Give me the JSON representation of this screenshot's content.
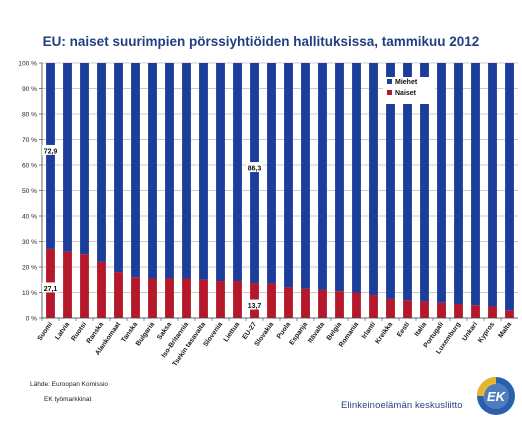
{
  "chart_data": {
    "type": "bar",
    "stacked": true,
    "title": "EU: naiset suurimpien pörssiyhtiöiden hallituksissa, tammikuu 2012",
    "categories": [
      "Suomi",
      "Latvia",
      "Ruotsi",
      "Ranska",
      "Alankomaat",
      "Tanska",
      "Bulgaria",
      "Saksa",
      "Iso-Britannia",
      "Tsekin tasavalta",
      "Slovenia",
      "Liettua",
      "EU-27",
      "Slovakia",
      "Puola",
      "Espanja",
      "Itävalta",
      "Belgia",
      "Romania",
      "Irlanti",
      "Kreikka",
      "Eesti",
      "Italia",
      "Portugali",
      "Luxemburg",
      "Unkari",
      "Kypros",
      "Malta"
    ],
    "series": [
      {
        "name": "Naiset",
        "color": "#b5172b",
        "values": [
          27.1,
          26,
          25,
          22,
          18,
          16,
          15.5,
          15.5,
          15.5,
          15,
          14.5,
          14.5,
          13.7,
          13.5,
          12,
          11.5,
          11,
          10.5,
          10,
          9,
          7.5,
          7,
          6.5,
          6,
          5.5,
          5,
          4.5,
          3
        ]
      },
      {
        "name": "Miehet",
        "color": "#1c3d99",
        "values": [
          72.9,
          74,
          75,
          78,
          82,
          84,
          84.5,
          84.5,
          84.5,
          85,
          85.5,
          85.5,
          86.3,
          86.5,
          88,
          88.5,
          89,
          89.5,
          90,
          91,
          92.5,
          93,
          93.5,
          94,
          94.5,
          95,
          95.5,
          97
        ]
      }
    ],
    "ylim": [
      0,
      100
    ],
    "yticks": [
      "0 %",
      "10 %",
      "20 %",
      "30 %",
      "40 %",
      "50 %",
      "60 %",
      "70 %",
      "80 %",
      "90 %",
      "100 %"
    ],
    "legend": {
      "position": "top-right",
      "entries": [
        "Miehet",
        "Naiset"
      ]
    },
    "annotations": [
      {
        "category": "Suomi",
        "series": "Miehet",
        "text": "72,9"
      },
      {
        "category": "Suomi",
        "series": "Naiset",
        "text": "27,1"
      },
      {
        "category": "EU-27",
        "series": "Miehet",
        "text": "86,3"
      },
      {
        "category": "EU-27",
        "series": "Naiset",
        "text": "13,7"
      }
    ],
    "grid": true
  },
  "footer": {
    "source_line_1": "Lähde: Euroopan Komissio",
    "source_line_2": "EK työmarkkinat",
    "brand_name": "Elinkeinoelämän keskusliitto",
    "logo_text": "EK"
  },
  "colors": {
    "title": "#1f3f80",
    "logo_blue": "#2a5fae",
    "logo_yellow": "#e5b52a"
  }
}
